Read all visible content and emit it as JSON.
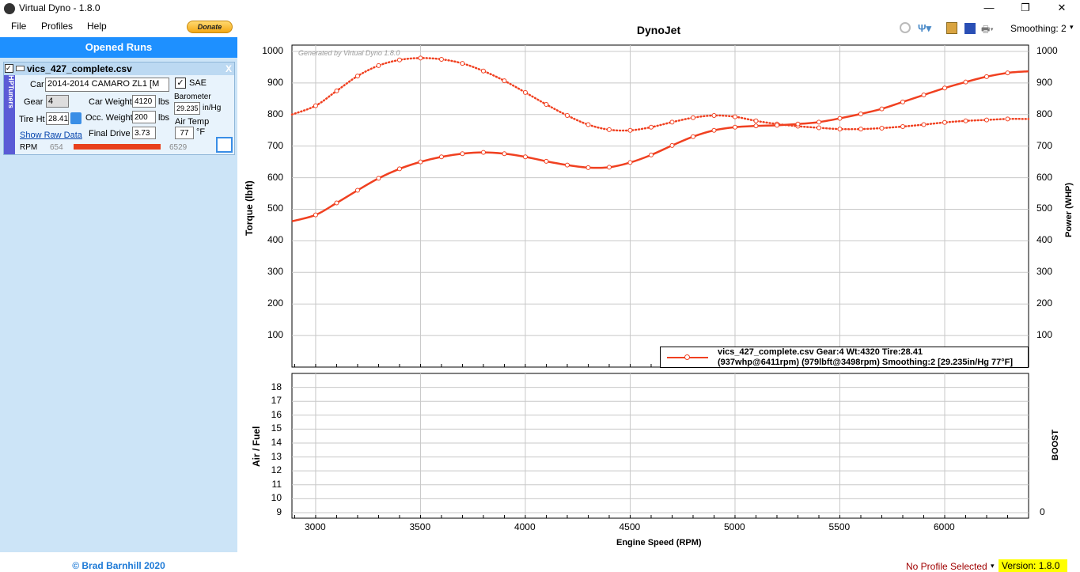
{
  "window": {
    "title": "Virtual Dyno - 1.8.0",
    "minimize": "—",
    "maximize": "❐",
    "close": "✕"
  },
  "menu": {
    "items": [
      "File",
      "Profiles",
      "Help"
    ],
    "donate": "Donate"
  },
  "left": {
    "header": "Opened Runs",
    "run": {
      "filename": "vics_427_complete.csv",
      "close": "X",
      "tab": "HPTuners",
      "car_label": "Car",
      "car_value": "2014-2014 CAMARO ZL1 [M",
      "sae_label": "SAE",
      "gear_label": "Gear",
      "gear_value": "4",
      "car_weight_label": "Car Weight",
      "car_weight": "4120",
      "lbs": "lbs",
      "barometer_label": "Barometer",
      "barometer": "29.235",
      "inhg": "in/Hg",
      "tire_label": "Tire Ht",
      "tire": "28.41",
      "occ_weight_label": "Occ. Weight",
      "occ_weight": "200",
      "air_temp_label": "Air Temp",
      "air_temp": "77",
      "degf": "°F",
      "raw_data_link": "Show Raw Data",
      "final_drive_label": "Final Drive",
      "final_drive": "3.73",
      "rpm_label": "RPM",
      "rpm_min": "654",
      "rpm_max": "6529"
    }
  },
  "footer": {
    "copyright": "© Brad Barnhill 2020",
    "profile": "No Profile Selected",
    "version": "Version: 1.8.0"
  },
  "toolbar": {
    "smoothing": "Smoothing: 2"
  },
  "colors": {
    "series": "#f04020",
    "accent": "#1e90ff"
  },
  "chart_data": [
    {
      "type": "line",
      "title": "DynoJet",
      "watermark": "Generated by Virtual Dyno 1.8.0",
      "xlabel": "Engine Speed (RPM)",
      "ylabel": "Torque (lbft)",
      "y2label": "Power (WHP)",
      "xlim": [
        2887,
        6400
      ],
      "ylim": [
        0,
        1020
      ],
      "xticks": [
        3000,
        3500,
        4000,
        4500,
        5000,
        5500,
        6000
      ],
      "yticks": [
        100,
        200,
        300,
        400,
        500,
        600,
        700,
        800,
        900,
        1000
      ],
      "legend": {
        "placement": "bottom-right",
        "line1": "vics_427_complete.csv Gear:4 Wt:4320 Tire:28.41",
        "line2": "(937whp@6411rpm) (979lbft@3498rpm)  Smoothing:2 [29.235in/Hg 77°F]"
      },
      "x": [
        2887,
        3000,
        3100,
        3200,
        3300,
        3400,
        3500,
        3600,
        3700,
        3800,
        3900,
        4000,
        4100,
        4200,
        4300,
        4400,
        4500,
        4600,
        4700,
        4800,
        4900,
        5000,
        5100,
        5200,
        5300,
        5400,
        5500,
        5600,
        5700,
        5800,
        5900,
        6000,
        6100,
        6200,
        6300,
        6400
      ],
      "series": [
        {
          "name": "Torque",
          "style": "dotted",
          "values": [
            800,
            828,
            875,
            922,
            955,
            973,
            979,
            975,
            962,
            938,
            907,
            870,
            832,
            797,
            768,
            752,
            750,
            760,
            776,
            790,
            797,
            793,
            780,
            770,
            763,
            758,
            754,
            754,
            757,
            762,
            768,
            775,
            780,
            783,
            786,
            786
          ]
        },
        {
          "name": "Power",
          "style": "solid",
          "values": [
            462,
            482,
            520,
            560,
            598,
            628,
            650,
            666,
            676,
            680,
            676,
            666,
            652,
            640,
            632,
            633,
            648,
            672,
            702,
            730,
            750,
            760,
            764,
            766,
            770,
            776,
            788,
            802,
            818,
            840,
            862,
            884,
            903,
            920,
            932,
            937
          ]
        }
      ]
    },
    {
      "type": "line",
      "ylabel": "Air / Fuel",
      "y2label": "BOOST",
      "ylim": [
        8.6,
        19
      ],
      "yticks": [
        9,
        10,
        11,
        12,
        13,
        14,
        15,
        16,
        17,
        18
      ],
      "y2ticks": [
        0
      ],
      "series": []
    }
  ]
}
